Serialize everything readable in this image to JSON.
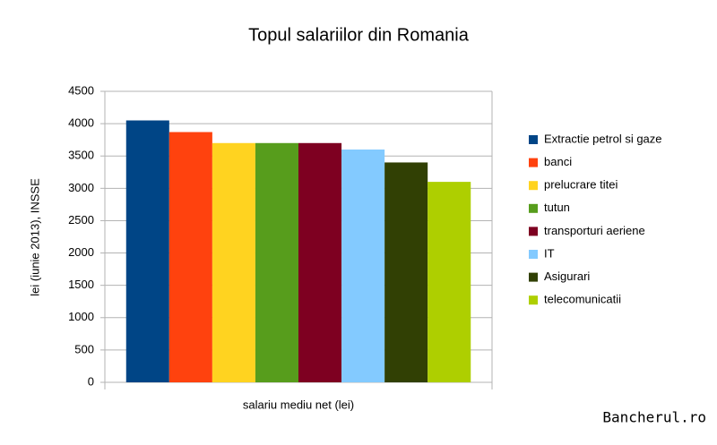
{
  "chart_data": {
    "type": "bar",
    "title": "Topul salariilor din Romania",
    "categories": [
      "salariu mediu net (lei)"
    ],
    "ylabel": "lei (iunie 2013), INSSE",
    "series": [
      {
        "name": "Extractie petrol si gaze",
        "color": "#004586",
        "values": [
          4050
        ]
      },
      {
        "name": "banci",
        "color": "#ff420e",
        "values": [
          3870
        ]
      },
      {
        "name": "prelucrare titei",
        "color": "#ffd320",
        "values": [
          3700
        ]
      },
      {
        "name": "tutun",
        "color": "#579d1c",
        "values": [
          3700
        ]
      },
      {
        "name": "transporturi aeriene",
        "color": "#7e0021",
        "values": [
          3700
        ]
      },
      {
        "name": "IT",
        "color": "#83caff",
        "values": [
          3600
        ]
      },
      {
        "name": "Asigurari",
        "color": "#314004",
        "values": [
          3400
        ]
      },
      {
        "name": "telecomunicatii",
        "color": "#aecf00",
        "values": [
          3100
        ]
      }
    ],
    "ylim": [
      0,
      4500
    ],
    "yticks": [
      0,
      500,
      1000,
      1500,
      2000,
      2500,
      3000,
      3500,
      4000,
      4500
    ],
    "grid": true,
    "legend": "right",
    "watermark": "Bancherul.ro"
  }
}
